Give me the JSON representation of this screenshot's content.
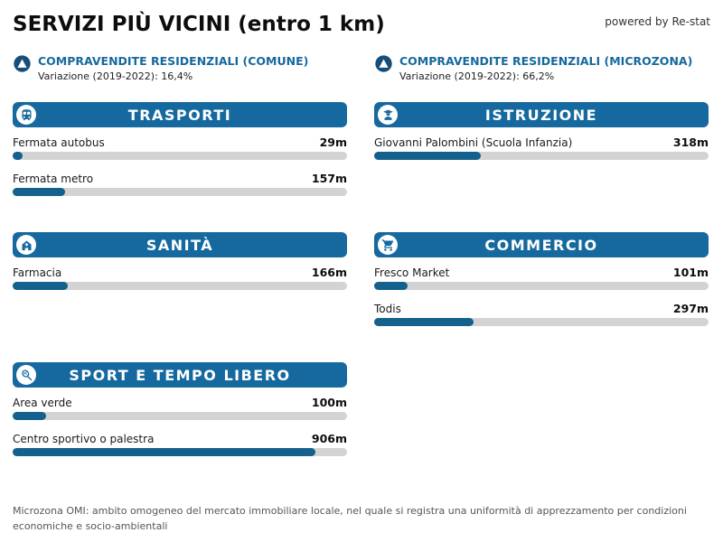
{
  "header": {
    "title": "SERVIZI PIÙ VICINI (entro 1 km)",
    "powered_by": "powered by Re-stat"
  },
  "colors": {
    "accent_blue": "#16699e",
    "bar_fill": "#15618e",
    "bar_track": "#d3d3d3",
    "stat_circle": "#174e79"
  },
  "stats": [
    {
      "icon": "trend-up-icon",
      "label": "COMPRAVENDITE RESIDENZIALI (COMUNE)",
      "sublabel": "Variazione (2019-2022): 16,4%"
    },
    {
      "icon": "trend-up-icon",
      "label": "COMPRAVENDITE RESIDENZIALI (MICROZONA)",
      "sublabel": "Variazione (2019-2022): 66,2%"
    }
  ],
  "sections": [
    {
      "title": "TRASPORTI",
      "icon": "train-icon",
      "items": [
        {
          "label": "Fermata autobus",
          "value": "29m",
          "distance_m": 29
        },
        {
          "label": "Fermata metro",
          "value": "157m",
          "distance_m": 157
        }
      ]
    },
    {
      "title": "ISTRUZIONE",
      "icon": "student-icon",
      "items": [
        {
          "label": "Giovanni Palombini (Scuola Infanzia)",
          "value": "318m",
          "distance_m": 318
        }
      ]
    },
    {
      "title": "SANITÀ",
      "icon": "hospital-icon",
      "items": [
        {
          "label": "Farmacia",
          "value": "166m",
          "distance_m": 166
        }
      ]
    },
    {
      "title": "COMMERCIO",
      "icon": "cart-icon",
      "items": [
        {
          "label": "Fresco Market",
          "value": "101m",
          "distance_m": 101
        },
        {
          "label": "Todis",
          "value": "297m",
          "distance_m": 297
        }
      ]
    },
    {
      "title": "SPORT E TEMPO LIBERO",
      "icon": "tennis-racket-icon",
      "items": [
        {
          "label": "Area verde",
          "value": "100m",
          "distance_m": 100
        },
        {
          "label": "Centro sportivo o palestra",
          "value": "906m",
          "distance_m": 906
        }
      ]
    }
  ],
  "footer": {
    "note": "Microzona OMI: ambito omogeneo del mercato immobiliare locale, nel quale si registra una uniformità di apprezzamento per condizioni economiche e socio-ambientali"
  },
  "chart_data": {
    "type": "bar",
    "orientation": "horizontal",
    "title": "SERVIZI PIÙ VICINI (entro 1 km)",
    "unit": "m",
    "xlim": [
      0,
      1000
    ],
    "grid": false,
    "series": [
      {
        "name": "TRASPORTI",
        "points": [
          {
            "label": "Fermata autobus",
            "value": 29
          },
          {
            "label": "Fermata metro",
            "value": 157
          }
        ]
      },
      {
        "name": "ISTRUZIONE",
        "points": [
          {
            "label": "Giovanni Palombini (Scuola Infanzia)",
            "value": 318
          }
        ]
      },
      {
        "name": "SANITÀ",
        "points": [
          {
            "label": "Farmacia",
            "value": 166
          }
        ]
      },
      {
        "name": "COMMERCIO",
        "points": [
          {
            "label": "Fresco Market",
            "value": 101
          },
          {
            "label": "Todis",
            "value": 297
          }
        ]
      },
      {
        "name": "SPORT E TEMPO LIBERO",
        "points": [
          {
            "label": "Area verde",
            "value": 100
          },
          {
            "label": "Centro sportivo o palestra",
            "value": 906
          }
        ]
      }
    ],
    "annotations": [
      {
        "label": "COMPRAVENDITE RESIDENZIALI (COMUNE)",
        "text": "Variazione (2019-2022): 16,4%",
        "value_pct": 16.4
      },
      {
        "label": "COMPRAVENDITE RESIDENZIALI (MICROZONA)",
        "text": "Variazione (2019-2022): 66,2%",
        "value_pct": 66.2
      }
    ]
  }
}
